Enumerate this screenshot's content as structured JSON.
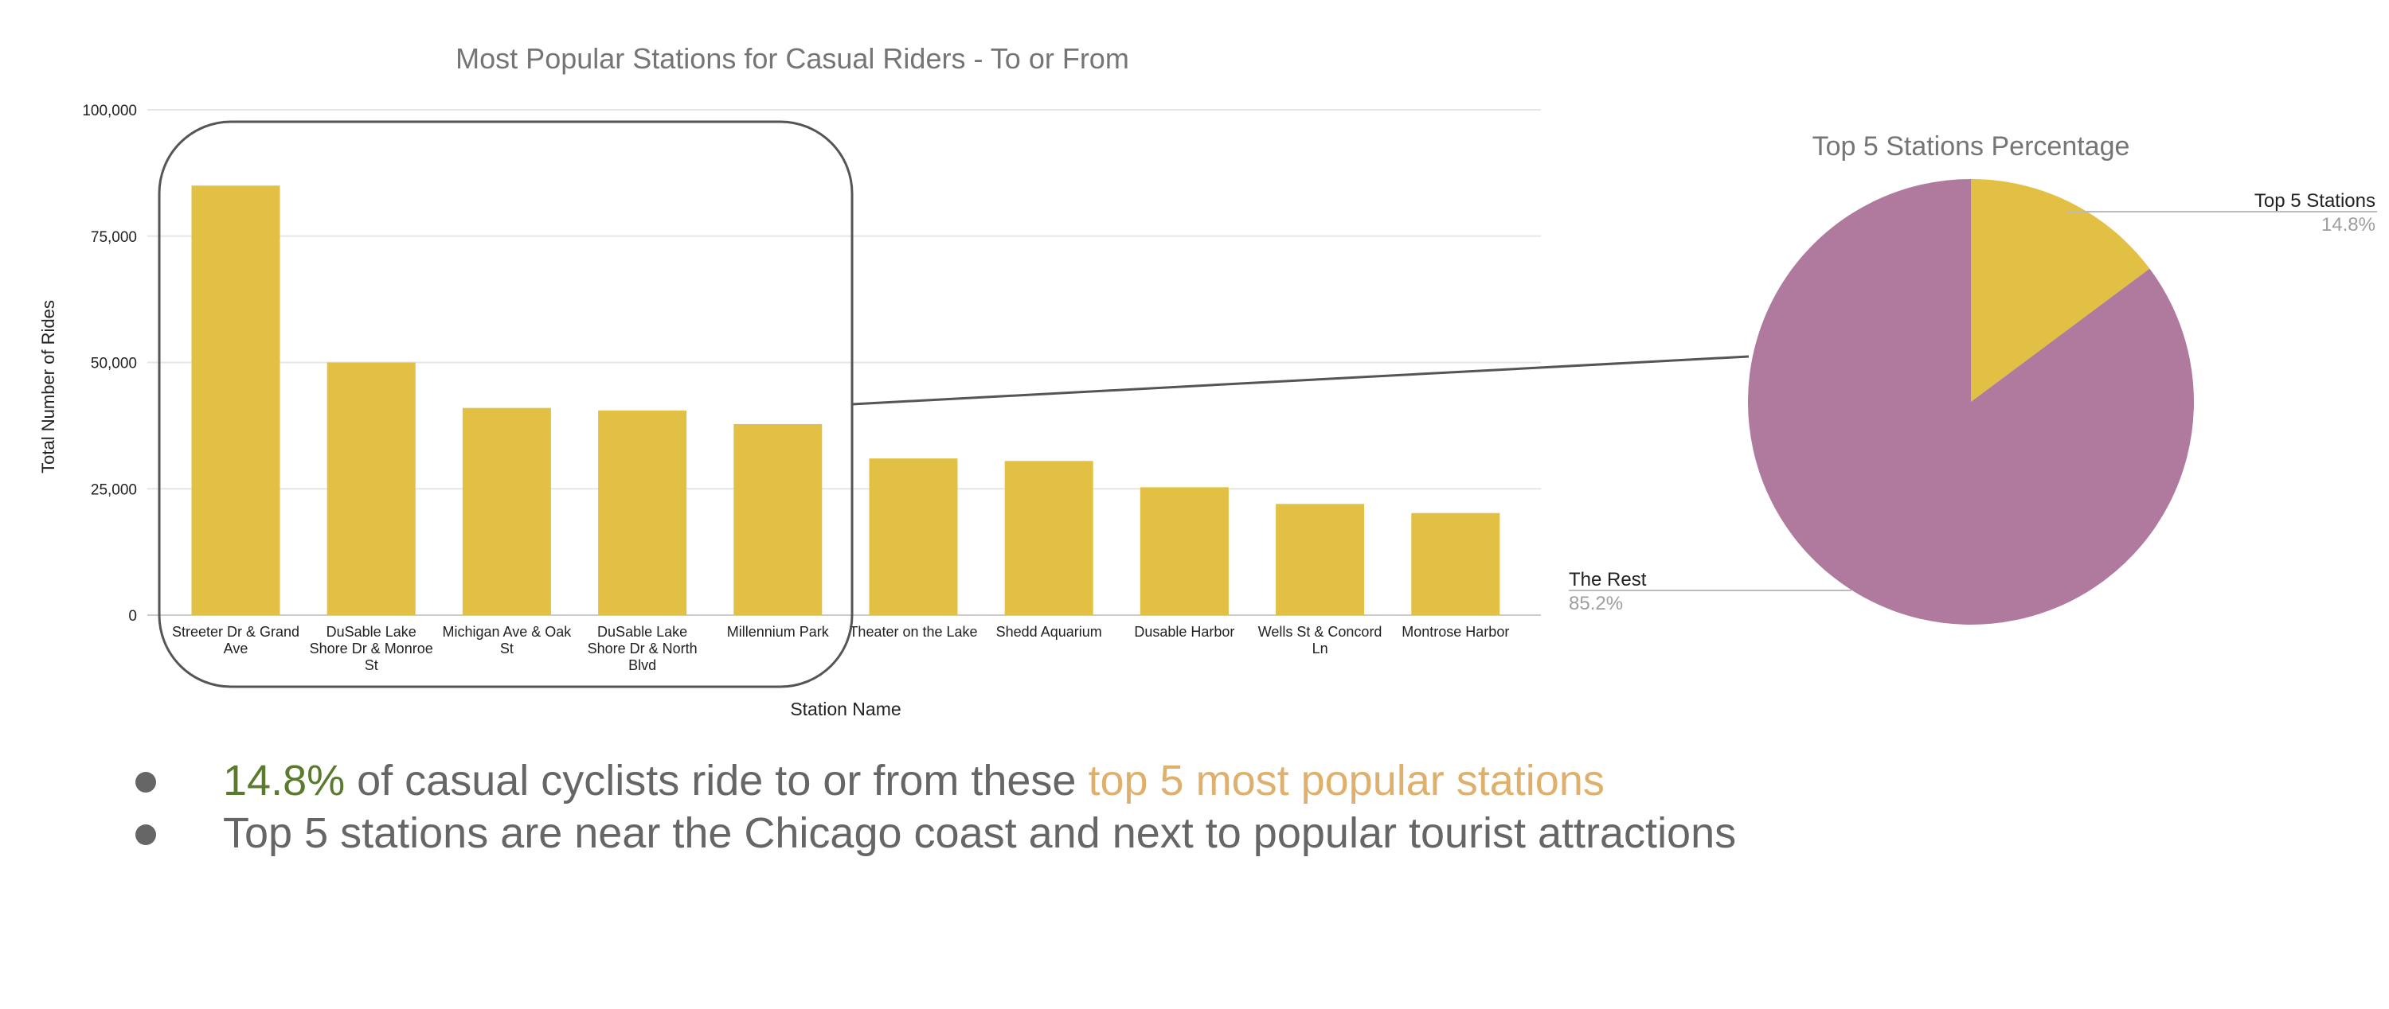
{
  "colors": {
    "bar": "#e1c043",
    "pie_rest": "#b07a9e",
    "pie_top5": "#e1c043",
    "highlight_percent": "#5a7a2e",
    "highlight_phrase": "#dfb06c",
    "body_text": "#666666"
  },
  "chart_data": [
    {
      "type": "bar",
      "title": "Most Popular Stations for Casual Riders - To or From",
      "xlabel": "Station Name",
      "ylabel": "Total Number of Rides",
      "ylim": [
        0,
        100000
      ],
      "yticks": [
        "0",
        "25,000",
        "50,000",
        "75,000",
        "100,000"
      ],
      "ytick_values": [
        0,
        25000,
        50000,
        75000,
        100000
      ],
      "grid": true,
      "categories": [
        "Streeter Dr & Grand Ave",
        "DuSable Lake Shore Dr & Monroe St",
        "Michigan Ave & Oak St",
        "DuSable Lake Shore Dr & North Blvd",
        "Millennium Park",
        "Theater on the Lake",
        "Shedd Aquarium",
        "Dusable Harbor",
        "Wells St & Concord Ln",
        "Montrose Harbor"
      ],
      "category_label_lines": [
        [
          "Streeter Dr & Grand",
          "Ave"
        ],
        [
          "DuSable Lake",
          "Shore Dr & Monroe",
          "St"
        ],
        [
          "Michigan Ave & Oak",
          "St"
        ],
        [
          "DuSable Lake",
          "Shore Dr & North",
          "Blvd"
        ],
        [
          "Millennium Park"
        ],
        [
          "Theater on the Lake"
        ],
        [
          "Shedd Aquarium"
        ],
        [
          "Dusable Harbor"
        ],
        [
          "Wells St & Concord",
          "Ln"
        ],
        [
          "Montrose Harbor"
        ]
      ],
      "values": [
        85000,
        50000,
        41000,
        40500,
        37800,
        31000,
        30500,
        25300,
        22000,
        20200
      ],
      "highlighted_categories": 5
    },
    {
      "type": "pie",
      "title": "Top 5 Stations Percentage",
      "labels": [
        "Top 5 Stations",
        "The Rest"
      ],
      "values": [
        14.8,
        85.2
      ],
      "value_labels": [
        "14.8%",
        "85.2%"
      ]
    }
  ],
  "summary": {
    "bullet1": {
      "percent": "14.8%",
      "middle": " of casual cyclists ride to or from these ",
      "phrase": "top 5 most popular stations"
    },
    "bullet2": "Top 5 stations are near the Chicago coast and next to popular tourist attractions"
  }
}
